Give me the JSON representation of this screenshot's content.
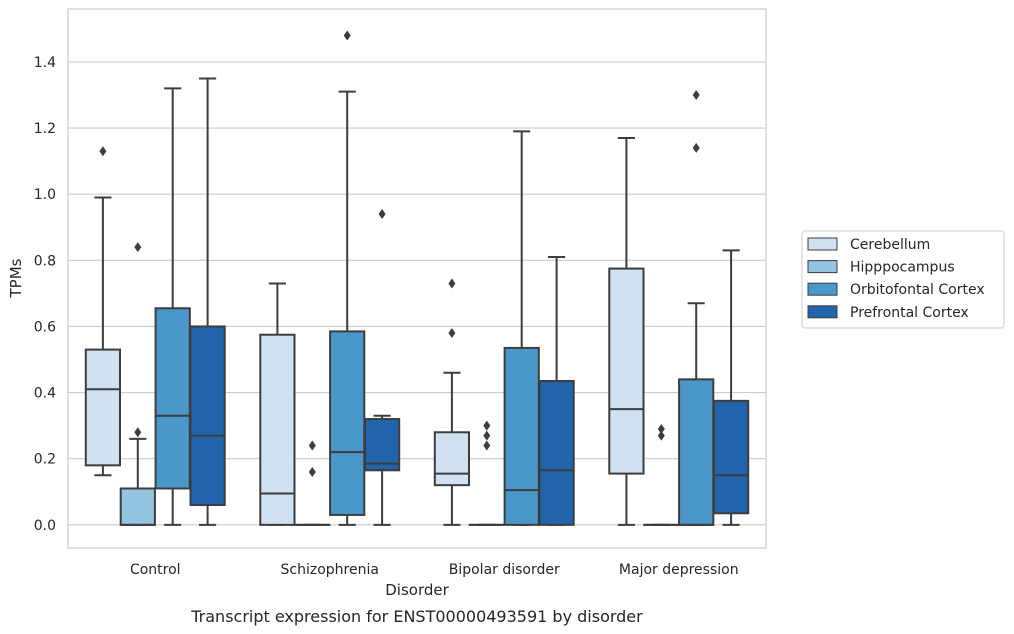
{
  "caption": "Transcript expression for ENST00000493591 by disorder",
  "chart_data": {
    "type": "box",
    "title": "",
    "xlabel": "Disorder",
    "ylabel": "TPMs",
    "ylim": [
      -0.07,
      1.56
    ],
    "yticks": [
      0.0,
      0.2,
      0.4,
      0.6,
      0.8,
      1.0,
      1.2,
      1.4
    ],
    "ytick_labels": [
      "0.0",
      "0.2",
      "0.4",
      "0.6",
      "0.8",
      "1.0",
      "1.2",
      "1.4"
    ],
    "grid": true,
    "legend_position": "right",
    "categories": [
      "Control",
      "Schizophrenia",
      "Bipolar disorder",
      "Major depression"
    ],
    "series": [
      {
        "name": "Cerebellum",
        "color": "#d0e1f2",
        "boxes": [
          {
            "q1": 0.18,
            "median": 0.41,
            "q3": 0.53,
            "whisker_low": 0.15,
            "whisker_high": 0.99,
            "outliers": [
              1.13
            ]
          },
          {
            "q1": 0.0,
            "median": 0.095,
            "q3": 0.575,
            "whisker_low": 0.0,
            "whisker_high": 0.73,
            "outliers": []
          },
          {
            "q1": 0.12,
            "median": 0.155,
            "q3": 0.28,
            "whisker_low": 0.0,
            "whisker_high": 0.46,
            "outliers": [
              0.58,
              0.73
            ]
          },
          {
            "q1": 0.155,
            "median": 0.35,
            "q3": 0.775,
            "whisker_low": 0.0,
            "whisker_high": 1.17,
            "outliers": []
          }
        ]
      },
      {
        "name": "Hipppocampus",
        "color": "#94c4df",
        "boxes": [
          {
            "q1": 0.0,
            "median": 0.0,
            "q3": 0.11,
            "whisker_low": 0.0,
            "whisker_high": 0.26,
            "outliers": [
              0.28,
              0.84
            ]
          },
          {
            "q1": 0.0,
            "median": 0.0,
            "q3": 0.0,
            "whisker_low": 0.0,
            "whisker_high": 0.0,
            "outliers": [
              0.16,
              0.24
            ]
          },
          {
            "q1": 0.0,
            "median": 0.0,
            "q3": 0.0,
            "whisker_low": 0.0,
            "whisker_high": 0.0,
            "outliers": [
              0.24,
              0.27,
              0.3
            ]
          },
          {
            "q1": 0.0,
            "median": 0.0,
            "q3": 0.0,
            "whisker_low": 0.0,
            "whisker_high": 0.0,
            "outliers": [
              0.27,
              0.29
            ]
          }
        ]
      },
      {
        "name": "Orbitofontal Cortex",
        "color": "#4a98c9",
        "boxes": [
          {
            "q1": 0.11,
            "median": 0.33,
            "q3": 0.655,
            "whisker_low": 0.0,
            "whisker_high": 1.32,
            "outliers": []
          },
          {
            "q1": 0.03,
            "median": 0.22,
            "q3": 0.585,
            "whisker_low": 0.0,
            "whisker_high": 1.31,
            "outliers": [
              1.48
            ]
          },
          {
            "q1": 0.0,
            "median": 0.105,
            "q3": 0.535,
            "whisker_low": 0.0,
            "whisker_high": 1.19,
            "outliers": []
          },
          {
            "q1": 0.0,
            "median": 0.0,
            "q3": 0.44,
            "whisker_low": 0.0,
            "whisker_high": 0.67,
            "outliers": [
              1.14,
              1.3
            ]
          }
        ]
      },
      {
        "name": "Prefrontal Cortex",
        "color": "#2164ab",
        "boxes": [
          {
            "q1": 0.06,
            "median": 0.27,
            "q3": 0.6,
            "whisker_low": 0.0,
            "whisker_high": 1.35,
            "outliers": []
          },
          {
            "q1": 0.165,
            "median": 0.185,
            "q3": 0.32,
            "whisker_low": 0.0,
            "whisker_high": 0.33,
            "outliers": [
              0.94
            ]
          },
          {
            "q1": 0.0,
            "median": 0.165,
            "q3": 0.435,
            "whisker_low": 0.0,
            "whisker_high": 0.81,
            "outliers": []
          },
          {
            "q1": 0.035,
            "median": 0.15,
            "q3": 0.375,
            "whisker_low": 0.0,
            "whisker_high": 0.83,
            "outliers": []
          }
        ]
      }
    ]
  }
}
